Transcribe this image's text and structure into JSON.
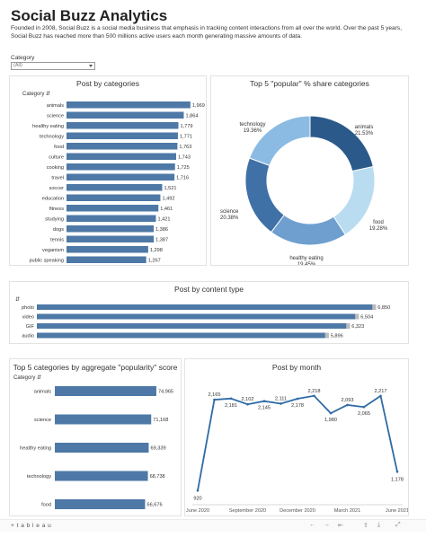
{
  "header": {
    "title": "Social Buzz Analytics",
    "description": "Founded in 2008, Social Buzz is a social media business that emphasis in tracking content interactions from all over the world. Over the past 5 years, Social Buzz has reached more than 500 millions active users each month generating massive amounts of data."
  },
  "filter": {
    "label": "Category",
    "value": "(All)"
  },
  "footer": {
    "logo": "+ t a b l e a u",
    "nav": {
      "undo": "←",
      "redo": "→",
      "revert": "⇤",
      "share": "⇪",
      "download": "⤓",
      "fullscreen": "⤢"
    }
  },
  "colors": {
    "bar": "#4e79a7",
    "dark": "#2b5a8a",
    "light": "#a0cbe8",
    "line": "#2f6aa6"
  },
  "chart_data": [
    {
      "type": "bar",
      "title": "Post by categories",
      "column_header": "Category",
      "categories": [
        "animals",
        "science",
        "healthy eating",
        "technology",
        "food",
        "culture",
        "cooking",
        "travel",
        "soccer",
        "education",
        "fitness",
        "studying",
        "dogs",
        "tennis",
        "veganism",
        "public speaking"
      ],
      "values": [
        1969,
        1864,
        1779,
        1771,
        1763,
        1743,
        1725,
        1716,
        1521,
        1492,
        1461,
        1421,
        1386,
        1387,
        1298,
        1267
      ],
      "value_labels": [
        "1,969",
        "1,864",
        "1,779",
        "1,771",
        "1,763",
        "1,743",
        "1,725",
        "1,716",
        "1,521",
        "1,492",
        "1,461",
        "1,421",
        "1,386",
        "1,387",
        "1,298",
        "1,267"
      ]
    },
    {
      "type": "pie",
      "title": "Top 5 \"popular\" % share categories",
      "slices": [
        {
          "label": "animals",
          "value": 21.53,
          "text": "21.53%",
          "color": "#2b5a8a"
        },
        {
          "label": "food",
          "value": 19.28,
          "text": "19.28%",
          "color": "#b9dcf0"
        },
        {
          "label": "healthy eating",
          "value": 19.45,
          "text": "19.45%",
          "color": "#6f9fcf"
        },
        {
          "label": "science",
          "value": 20.38,
          "text": "20.38%",
          "color": "#3f70a6"
        },
        {
          "label": "technology",
          "value": 19.36,
          "text": "19.36%",
          "color": "#8bbbe3"
        }
      ]
    },
    {
      "type": "bar",
      "title": "Post by content type",
      "column_header": "",
      "categories": [
        "photo",
        "video",
        "GIF",
        "audio"
      ],
      "values": [
        6850,
        6504,
        6323,
        5896
      ],
      "value_labels": [
        "6,850",
        "6,504",
        "6,323",
        "5,896"
      ]
    },
    {
      "type": "bar",
      "title": "Top 5 categories by aggregate \"popularity\" score",
      "column_header": "Category",
      "categories": [
        "animals",
        "science",
        "healthy eating",
        "technology",
        "food"
      ],
      "values": [
        74965,
        71168,
        69339,
        68738,
        66676
      ],
      "value_labels": [
        "74,965",
        "71,168",
        "69,339",
        "68,738",
        "66,676"
      ]
    },
    {
      "type": "line",
      "title": "Post by month",
      "x": [
        "2020-06",
        "2020-07",
        "2020-08",
        "2020-09",
        "2020-10",
        "2020-11",
        "2020-12",
        "2021-01",
        "2021-02",
        "2021-03",
        "2021-04",
        "2021-05",
        "2021-06"
      ],
      "values": [
        920,
        2165,
        2181,
        2102,
        2145,
        2111,
        2178,
        2218,
        1980,
        2093,
        2065,
        2217,
        1178
      ],
      "value_labels": [
        "920",
        "2,165",
        "2,181",
        "2,102",
        "2,145",
        "2,111",
        "2,178",
        "2,218",
        "1,980",
        "2,093",
        "2,065",
        "2,217",
        "1,178"
      ],
      "tick_labels": [
        "June 2020",
        "September 2020",
        "December 2020",
        "March 2021",
        "June 2021"
      ],
      "ylim": [
        800,
        2400
      ]
    }
  ]
}
